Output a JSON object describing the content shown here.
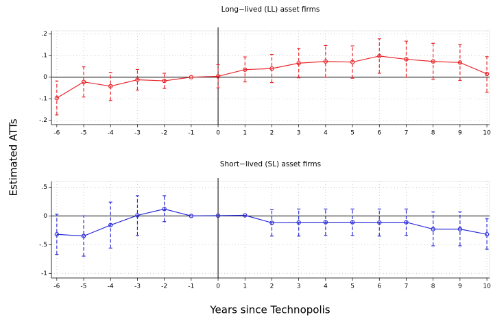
{
  "ylabel": "Estimated ATTs",
  "xlabel": "Years since Technopolis",
  "chart_data": [
    {
      "type": "line",
      "title": "Long−lived (LL) asset firms",
      "x": [
        -6,
        -5,
        -4,
        -3,
        -2,
        -1,
        0,
        1,
        2,
        3,
        4,
        5,
        6,
        7,
        8,
        9,
        10
      ],
      "series": [
        {
          "color": "#e8262b",
          "values": [
            -0.097,
            -0.022,
            -0.042,
            -0.012,
            -0.017,
            0,
            0.004,
            0.035,
            0.04,
            0.065,
            0.073,
            0.07,
            0.098,
            0.083,
            0.073,
            0.068,
            0.015
          ],
          "lower": [
            -0.175,
            -0.092,
            -0.108,
            -0.06,
            -0.052,
            null,
            -0.05,
            -0.022,
            -0.025,
            -0.003,
            0.0,
            -0.005,
            0.018,
            0.0,
            -0.01,
            -0.015,
            -0.07
          ],
          "upper": [
            -0.018,
            0.048,
            0.022,
            0.036,
            0.018,
            null,
            0.058,
            0.094,
            0.105,
            0.133,
            0.147,
            0.145,
            0.178,
            0.167,
            0.157,
            0.152,
            0.095
          ]
        }
      ],
      "xlim": [
        -6.2,
        10.1
      ],
      "xticks": [
        -6,
        -5,
        -4,
        -3,
        -2,
        -1,
        0,
        1,
        2,
        3,
        4,
        5,
        6,
        7,
        8,
        9,
        10
      ],
      "ylim": [
        -0.22,
        0.215
      ],
      "yticks": [
        {
          "value": -0.2,
          "label": "-.2"
        },
        {
          "value": -0.1,
          "label": "-.1"
        },
        0,
        {
          "value": 0.1,
          "label": ".1"
        },
        {
          "value": 0.2,
          "label": ".2"
        }
      ],
      "vline": 0,
      "hline": 0,
      "grid": true
    },
    {
      "type": "line",
      "title": "Short−lived (SL) asset firms",
      "x": [
        -6,
        -5,
        -4,
        -3,
        -2,
        -1,
        0,
        1,
        2,
        3,
        4,
        5,
        6,
        7,
        8,
        9,
        10
      ],
      "series": [
        {
          "color": "#2b2bd9",
          "values": [
            -0.32,
            -0.35,
            -0.16,
            0.01,
            0.12,
            0,
            0.005,
            0.01,
            -0.12,
            -0.115,
            -0.11,
            -0.11,
            -0.115,
            -0.11,
            -0.23,
            -0.23,
            -0.32
          ],
          "lower": [
            -0.67,
            -0.7,
            -0.56,
            -0.34,
            -0.1,
            null,
            null,
            null,
            -0.35,
            -0.35,
            -0.34,
            -0.34,
            -0.35,
            -0.34,
            -0.52,
            -0.52,
            -0.58
          ],
          "upper": [
            0.03,
            0.0,
            0.24,
            0.35,
            0.35,
            null,
            null,
            null,
            0.11,
            0.12,
            0.12,
            0.12,
            0.12,
            0.12,
            0.07,
            0.07,
            -0.05
          ]
        }
      ],
      "xlim": [
        -6.2,
        10.1
      ],
      "xticks": [
        -6,
        -5,
        -4,
        -3,
        -2,
        -1,
        0,
        1,
        2,
        3,
        4,
        5,
        6,
        7,
        8,
        9,
        10
      ],
      "ylim": [
        -1.08,
        0.6
      ],
      "yticks": [
        {
          "value": -1,
          "label": "-1"
        },
        {
          "value": -0.5,
          "label": "-.5"
        },
        0,
        {
          "value": 0.5,
          "label": ".5"
        }
      ],
      "vline": 0,
      "hline": 0,
      "grid": true
    }
  ]
}
